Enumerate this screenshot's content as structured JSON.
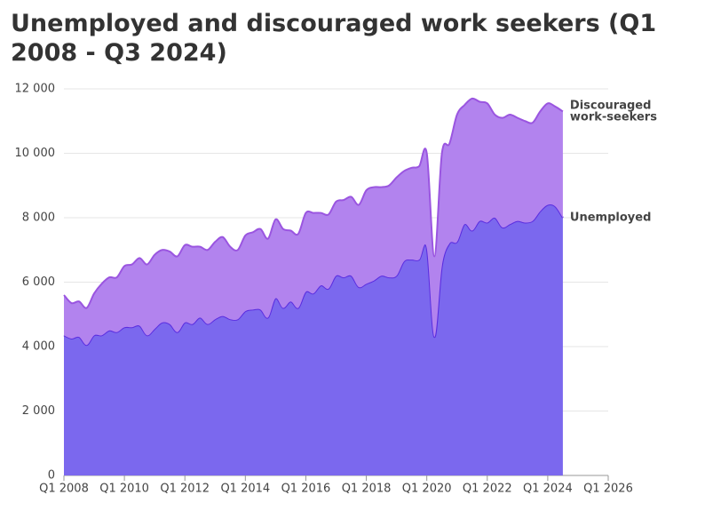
{
  "chart_data": {
    "type": "stacked-area",
    "title": "Unemployed and discouraged work seekers (Q1 2008 - Q3 2024)",
    "x": [
      2008,
      2008.25,
      2008.5,
      2008.75,
      2009,
      2009.25,
      2009.5,
      2009.75,
      2010,
      2010.25,
      2010.5,
      2010.75,
      2011,
      2011.25,
      2011.5,
      2011.75,
      2012,
      2012.25,
      2012.5,
      2012.75,
      2013,
      2013.25,
      2013.5,
      2013.75,
      2014,
      2014.25,
      2014.5,
      2014.75,
      2015,
      2015.25,
      2015.5,
      2015.75,
      2016,
      2016.25,
      2016.5,
      2016.75,
      2017,
      2017.25,
      2017.5,
      2017.75,
      2018,
      2018.25,
      2018.5,
      2018.75,
      2019,
      2019.25,
      2019.5,
      2019.75,
      2020,
      2020.25,
      2020.5,
      2020.75,
      2021,
      2021.25,
      2021.5,
      2021.75,
      2022,
      2022.25,
      2022.5,
      2022.75,
      2023,
      2023.25,
      2023.5,
      2023.75,
      2024,
      2024.25,
      2024.5
    ],
    "series": [
      {
        "name": "Unemployed",
        "color": "#7b68ee",
        "line_color": "#5a2de0",
        "values": [
          4350,
          4250,
          4300,
          4050,
          4350,
          4350,
          4500,
          4450,
          4600,
          4600,
          4650,
          4350,
          4550,
          4750,
          4700,
          4450,
          4750,
          4700,
          4900,
          4700,
          4850,
          4950,
          4850,
          4850,
          5100,
          5150,
          5150,
          4900,
          5500,
          5200,
          5400,
          5200,
          5700,
          5650,
          5900,
          5800,
          6200,
          6150,
          6200,
          5850,
          5950,
          6050,
          6200,
          6150,
          6200,
          6650,
          6700,
          6700,
          7050,
          4300,
          6500,
          7200,
          7250,
          7800,
          7600,
          7900,
          7850,
          8000,
          7700,
          7800,
          7900,
          7850,
          7900,
          8200,
          8400,
          8350,
          8000
        ]
      },
      {
        "name": "Discouraged work-seekers",
        "color": "#b283ee",
        "line_color": "#9a55e0",
        "values": [
          1250,
          1100,
          1100,
          1150,
          1300,
          1600,
          1650,
          1700,
          1900,
          1950,
          2100,
          2200,
          2300,
          2250,
          2250,
          2350,
          2400,
          2400,
          2200,
          2300,
          2400,
          2450,
          2250,
          2150,
          2350,
          2400,
          2500,
          2450,
          2450,
          2450,
          2200,
          2300,
          2450,
          2500,
          2250,
          2300,
          2300,
          2400,
          2450,
          2550,
          2900,
          2900,
          2750,
          2850,
          3050,
          2800,
          2850,
          2900,
          2950,
          2500,
          3500,
          3100,
          3950,
          3700,
          4100,
          3700,
          3700,
          3200,
          3400,
          3400,
          3200,
          3150,
          3050,
          3100,
          3150,
          3100,
          3300
        ]
      }
    ],
    "xlim": [
      2008,
      2026
    ],
    "xticks": [
      {
        "value": 2008,
        "label": "Q1 2008"
      },
      {
        "value": 2010,
        "label": "Q1 2010"
      },
      {
        "value": 2012,
        "label": "Q1 2012"
      },
      {
        "value": 2014,
        "label": "Q1 2014"
      },
      {
        "value": 2016,
        "label": "Q1 2016"
      },
      {
        "value": 2018,
        "label": "Q1 2018"
      },
      {
        "value": 2020,
        "label": "Q1 2020"
      },
      {
        "value": 2022,
        "label": "Q1 2022"
      },
      {
        "value": 2024,
        "label": "Q1 2024"
      },
      {
        "value": 2026,
        "label": "Q1 2026"
      }
    ],
    "ylim": [
      0,
      12000
    ],
    "yticks": [
      0,
      {
        "value": 2000,
        "label": "2 000"
      },
      {
        "value": 4000,
        "label": "4 000"
      },
      {
        "value": 6000,
        "label": "6 000"
      },
      {
        "value": 8000,
        "label": "8 000"
      },
      {
        "value": 10000,
        "label": "10 000"
      },
      {
        "value": 12000,
        "label": "12 000"
      }
    ],
    "grid": true
  }
}
